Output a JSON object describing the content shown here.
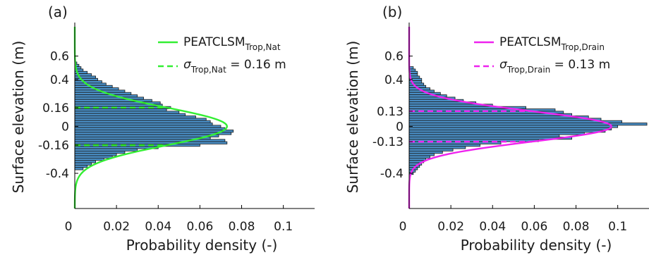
{
  "colors": {
    "bar_fill": "#4a90c8",
    "bar_edge": "#1a1a1a",
    "panel_a_accent": "#33ee33",
    "panel_b_accent": "#ee22ee",
    "axis": "#000000"
  },
  "chart_data": [
    {
      "panel_label": "(a)",
      "type": "bar",
      "orientation": "horizontal",
      "xlabel": "Probability density (-)",
      "ylabel": "Surface elevation (m)",
      "xlim": [
        0,
        0.115
      ],
      "ylim": [
        -0.7,
        0.85
      ],
      "xticks": [
        0,
        0.02,
        0.04,
        0.06,
        0.08,
        0.1
      ],
      "xtick_labels": [
        "0",
        "0.02",
        "0.04",
        "0.06",
        "0.08",
        "0.1"
      ],
      "yticks": [
        0.6,
        0.4,
        0.16,
        0,
        -0.16,
        -0.4
      ],
      "ytick_labels": [
        "0.6",
        "0.4",
        "0.16",
        "0",
        "-0.16",
        "-0.4"
      ],
      "legend": {
        "placement": "top-right",
        "entries": [
          {
            "text": "PEATCLSM",
            "sub": "Trop,Nat",
            "style": "solid"
          },
          {
            "text": "σ",
            "sub": "Trop,Nat",
            "after": " = 0.16 m",
            "style": "dashed"
          }
        ]
      },
      "sigma": 0.16,
      "sigma_label": "σTrop,Nat = 0.16 m",
      "normal_peak": 0.073,
      "bin_width": 0.02,
      "bins": [
        {
          "y": 0.54,
          "density": 0.001
        },
        {
          "y": 0.52,
          "density": 0.002
        },
        {
          "y": 0.5,
          "density": 0.003
        },
        {
          "y": 0.48,
          "density": 0.004
        },
        {
          "y": 0.46,
          "density": 0.006
        },
        {
          "y": 0.44,
          "density": 0.008
        },
        {
          "y": 0.42,
          "density": 0.01
        },
        {
          "y": 0.4,
          "density": 0.011
        },
        {
          "y": 0.38,
          "density": 0.013
        },
        {
          "y": 0.36,
          "density": 0.015
        },
        {
          "y": 0.34,
          "density": 0.018
        },
        {
          "y": 0.32,
          "density": 0.021
        },
        {
          "y": 0.3,
          "density": 0.024
        },
        {
          "y": 0.28,
          "density": 0.027
        },
        {
          "y": 0.26,
          "density": 0.03
        },
        {
          "y": 0.24,
          "density": 0.033
        },
        {
          "y": 0.22,
          "density": 0.037
        },
        {
          "y": 0.2,
          "density": 0.041
        },
        {
          "y": 0.18,
          "density": 0.042
        },
        {
          "y": 0.16,
          "density": 0.046
        },
        {
          "y": 0.14,
          "density": 0.044
        },
        {
          "y": 0.12,
          "density": 0.05
        },
        {
          "y": 0.1,
          "density": 0.053
        },
        {
          "y": 0.08,
          "density": 0.058
        },
        {
          "y": 0.06,
          "density": 0.063
        },
        {
          "y": 0.04,
          "density": 0.065
        },
        {
          "y": 0.02,
          "density": 0.066
        },
        {
          "y": 0.0,
          "density": 0.07
        },
        {
          "y": -0.02,
          "density": 0.072
        },
        {
          "y": -0.04,
          "density": 0.076
        },
        {
          "y": -0.06,
          "density": 0.075
        },
        {
          "y": -0.08,
          "density": 0.069
        },
        {
          "y": -0.1,
          "density": 0.065
        },
        {
          "y": -0.12,
          "density": 0.072
        },
        {
          "y": -0.14,
          "density": 0.073
        },
        {
          "y": -0.16,
          "density": 0.06
        },
        {
          "y": -0.18,
          "density": 0.04
        },
        {
          "y": -0.2,
          "density": 0.03
        },
        {
          "y": -0.22,
          "density": 0.024
        },
        {
          "y": -0.24,
          "density": 0.02
        },
        {
          "y": -0.26,
          "density": 0.018
        },
        {
          "y": -0.28,
          "density": 0.014
        },
        {
          "y": -0.3,
          "density": 0.01
        },
        {
          "y": -0.32,
          "density": 0.008
        },
        {
          "y": -0.34,
          "density": 0.006
        },
        {
          "y": -0.36,
          "density": 0.004
        }
      ]
    },
    {
      "panel_label": "(b)",
      "type": "bar",
      "orientation": "horizontal",
      "xlabel": "Probability density (-)",
      "ylabel": "Surface elevation (m)",
      "xlim": [
        0,
        0.115
      ],
      "ylim": [
        -0.7,
        0.85
      ],
      "xticks": [
        0,
        0.02,
        0.04,
        0.06,
        0.08,
        0.1
      ],
      "xtick_labels": [
        "0",
        "0.02",
        "0.04",
        "0.06",
        "0.08",
        "0.1"
      ],
      "yticks": [
        0.6,
        0.4,
        0.13,
        0,
        -0.13,
        -0.4
      ],
      "ytick_labels": [
        "0.6",
        "0.4",
        "0.13",
        "0",
        "-0.13",
        "-0.4"
      ],
      "legend": {
        "placement": "top-right",
        "entries": [
          {
            "text": "PEATCLSM",
            "sub": "Trop,Drain",
            "style": "solid"
          },
          {
            "text": "σ",
            "sub": "Trop,Drain",
            "after": " = 0.13 m",
            "style": "dashed"
          }
        ]
      },
      "sigma": 0.13,
      "sigma_label": "σTrop,Drain = 0.13 m",
      "normal_peak": 0.097,
      "bin_width": 0.02,
      "bins": [
        {
          "y": 0.5,
          "density": 0.002
        },
        {
          "y": 0.48,
          "density": 0.003
        },
        {
          "y": 0.46,
          "density": 0.004
        },
        {
          "y": 0.44,
          "density": 0.004
        },
        {
          "y": 0.42,
          "density": 0.005
        },
        {
          "y": 0.4,
          "density": 0.006
        },
        {
          "y": 0.38,
          "density": 0.006
        },
        {
          "y": 0.36,
          "density": 0.007
        },
        {
          "y": 0.34,
          "density": 0.008
        },
        {
          "y": 0.32,
          "density": 0.01
        },
        {
          "y": 0.3,
          "density": 0.012
        },
        {
          "y": 0.28,
          "density": 0.015
        },
        {
          "y": 0.26,
          "density": 0.018
        },
        {
          "y": 0.24,
          "density": 0.022
        },
        {
          "y": 0.22,
          "density": 0.026
        },
        {
          "y": 0.2,
          "density": 0.032
        },
        {
          "y": 0.18,
          "density": 0.04
        },
        {
          "y": 0.16,
          "density": 0.056
        },
        {
          "y": 0.14,
          "density": 0.07
        },
        {
          "y": 0.12,
          "density": 0.074
        },
        {
          "y": 0.1,
          "density": 0.078
        },
        {
          "y": 0.08,
          "density": 0.086
        },
        {
          "y": 0.06,
          "density": 0.092
        },
        {
          "y": 0.04,
          "density": 0.102
        },
        {
          "y": 0.02,
          "density": 0.114
        },
        {
          "y": 0.0,
          "density": 0.1
        },
        {
          "y": -0.02,
          "density": 0.097
        },
        {
          "y": -0.04,
          "density": 0.094
        },
        {
          "y": -0.06,
          "density": 0.084
        },
        {
          "y": -0.08,
          "density": 0.072
        },
        {
          "y": -0.1,
          "density": 0.078
        },
        {
          "y": -0.12,
          "density": 0.062
        },
        {
          "y": -0.14,
          "density": 0.044
        },
        {
          "y": -0.16,
          "density": 0.034
        },
        {
          "y": -0.18,
          "density": 0.027
        },
        {
          "y": -0.2,
          "density": 0.021
        },
        {
          "y": -0.22,
          "density": 0.016
        },
        {
          "y": -0.24,
          "density": 0.012
        },
        {
          "y": -0.26,
          "density": 0.01
        },
        {
          "y": -0.28,
          "density": 0.008
        },
        {
          "y": -0.3,
          "density": 0.007
        },
        {
          "y": -0.32,
          "density": 0.006
        },
        {
          "y": -0.34,
          "density": 0.005
        },
        {
          "y": -0.36,
          "density": 0.004
        },
        {
          "y": -0.38,
          "density": 0.003
        },
        {
          "y": -0.4,
          "density": 0.002
        }
      ]
    }
  ]
}
